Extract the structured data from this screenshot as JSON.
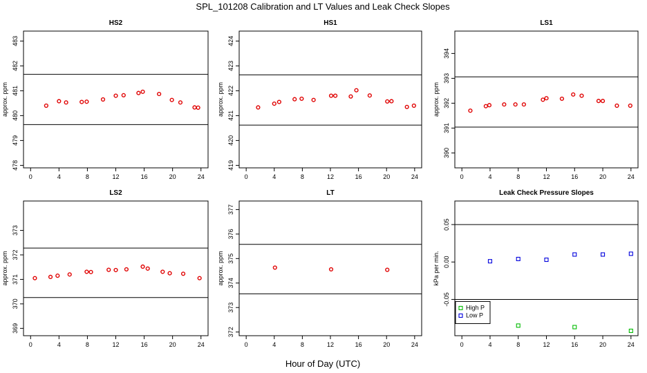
{
  "figure": {
    "title": "SPL_101208  Calibration and LT Values and Leak Check Slopes",
    "xlabel": "Hour of Day (UTC)"
  },
  "chart_data": [
    {
      "type": "scatter",
      "title": "HS2",
      "ylabel": "approx. ppm",
      "xlim": [
        -1,
        25
      ],
      "ylim": [
        477.9,
        483.4
      ],
      "xticks": [
        0,
        4,
        8,
        12,
        16,
        20,
        24
      ],
      "yticks": [
        478,
        479,
        480,
        481,
        482,
        483
      ],
      "hlines": [
        481.66,
        479.64
      ],
      "series": [
        {
          "color": "#e00000",
          "marker": "circle",
          "x": [
            2.2,
            4.0,
            5.0,
            7.2,
            7.9,
            10.2,
            12.0,
            13.1,
            15.2,
            15.8,
            18.1,
            19.9,
            21.1,
            23.1,
            23.6
          ],
          "y": [
            480.4,
            480.58,
            480.53,
            480.55,
            480.56,
            480.65,
            480.8,
            480.82,
            480.91,
            480.96,
            480.87,
            480.63,
            480.53,
            480.33,
            480.32
          ]
        }
      ]
    },
    {
      "type": "scatter",
      "title": "HS1",
      "ylabel": "approx. ppm",
      "xlim": [
        -1,
        25
      ],
      "ylim": [
        418.9,
        424.4
      ],
      "xticks": [
        0,
        4,
        8,
        12,
        16,
        20,
        24
      ],
      "yticks": [
        419,
        420,
        421,
        422,
        423,
        424
      ],
      "hlines": [
        422.64,
        420.62
      ],
      "series": [
        {
          "color": "#e00000",
          "marker": "circle",
          "x": [
            1.7,
            4.0,
            4.7,
            6.9,
            7.9,
            9.6,
            12.1,
            12.7,
            14.9,
            15.7,
            17.6,
            20.1,
            20.7,
            22.9,
            23.9
          ],
          "y": [
            421.33,
            421.48,
            421.55,
            421.66,
            421.68,
            421.63,
            421.8,
            421.8,
            421.77,
            422.02,
            421.81,
            421.57,
            421.58,
            421.35,
            421.4
          ]
        }
      ]
    },
    {
      "type": "scatter",
      "title": "LS1",
      "ylabel": "approx. ppm",
      "xlim": [
        -1,
        25
      ],
      "ylim": [
        389.4,
        394.9
      ],
      "xticks": [
        0,
        4,
        8,
        12,
        16,
        20,
        24
      ],
      "yticks": [
        390,
        391,
        392,
        393,
        394
      ],
      "hlines": [
        393.06,
        391.04
      ],
      "series": [
        {
          "color": "#e00000",
          "marker": "circle",
          "x": [
            1.2,
            3.4,
            3.9,
            6.0,
            7.6,
            8.8,
            11.5,
            12.0,
            14.2,
            15.8,
            17.0,
            19.4,
            20.0,
            22.0,
            23.9
          ],
          "y": [
            391.7,
            391.88,
            391.92,
            391.95,
            391.95,
            391.95,
            392.14,
            392.2,
            392.18,
            392.35,
            392.3,
            392.09,
            392.09,
            391.9,
            391.9
          ]
        }
      ]
    },
    {
      "type": "scatter",
      "title": "LS2",
      "ylabel": "approx. ppm",
      "xlim": [
        -1,
        25
      ],
      "ylim": [
        368.7,
        374.2
      ],
      "xticks": [
        0,
        4,
        8,
        12,
        16,
        20,
        24
      ],
      "yticks": [
        369,
        370,
        371,
        372,
        373
      ],
      "hlines": [
        372.28,
        370.26
      ],
      "series": [
        {
          "color": "#e00000",
          "marker": "circle",
          "x": [
            0.6,
            2.8,
            3.8,
            5.5,
            7.9,
            8.5,
            11.0,
            12.0,
            13.5,
            15.8,
            16.5,
            18.6,
            19.6,
            21.5,
            23.8
          ],
          "y": [
            371.05,
            371.1,
            371.15,
            371.2,
            371.31,
            371.3,
            371.39,
            371.38,
            371.41,
            371.52,
            371.44,
            371.31,
            371.25,
            371.23,
            371.05
          ]
        }
      ]
    },
    {
      "type": "scatter",
      "title": "LT",
      "ylabel": "approx. ppm",
      "xlim": [
        -1,
        25
      ],
      "ylim": [
        371.85,
        377.35
      ],
      "xticks": [
        0,
        4,
        8,
        12,
        16,
        20,
        24
      ],
      "yticks": [
        372,
        373,
        374,
        375,
        376,
        377
      ],
      "hlines": [
        375.58,
        373.56
      ],
      "series": [
        {
          "color": "#e00000",
          "marker": "circle",
          "x": [
            4.1,
            12.1,
            20.1
          ],
          "y": [
            374.63,
            374.56,
            374.54
          ]
        }
      ]
    },
    {
      "type": "scatter",
      "title": "Leak Check Pressure Slopes",
      "ylabel": "kPa per min.",
      "xlim": [
        -1,
        25
      ],
      "ylim": [
        -0.0985,
        0.0815
      ],
      "xticks": [
        0,
        4,
        8,
        12,
        16,
        20,
        24
      ],
      "yticks": [
        -0.05,
        0.0,
        0.05
      ],
      "ytick_labels": [
        "-0.05",
        "0.00",
        "0.05"
      ],
      "hlines": [
        0.05,
        -0.05
      ],
      "legend": {
        "position": "bottom-left",
        "entries": [
          "High P",
          "Low P"
        ]
      },
      "series": [
        {
          "name": "High P",
          "color": "#00bb00",
          "marker": "square",
          "x": [
            8.0,
            16.0,
            24.0
          ],
          "y": [
            -0.085,
            -0.087,
            -0.092
          ]
        },
        {
          "name": "Low P",
          "color": "#0000dd",
          "marker": "square",
          "x": [
            4.0,
            8.0,
            12.0,
            16.0,
            20.0,
            24.0
          ],
          "y": [
            0.001,
            0.004,
            0.003,
            0.01,
            0.01,
            0.011
          ]
        }
      ]
    }
  ]
}
